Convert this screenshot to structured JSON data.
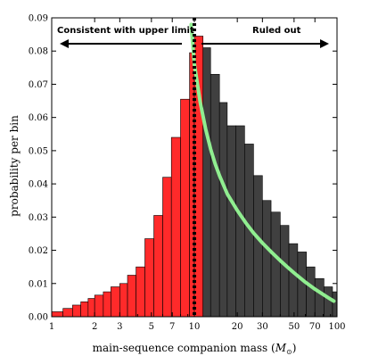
{
  "chart_data": {
    "type": "bar",
    "x_scale": "log",
    "xlim": [
      1,
      100
    ],
    "ylim": [
      0,
      0.09
    ],
    "xlabel": "main-sequence companion mass (",
    "xlabel_symbol": "M",
    "xlabel_subscript": "⊙",
    "xlabel_end": ")",
    "ylabel": "probability per bin",
    "x_ticks": [
      1,
      2,
      3,
      5,
      7,
      10,
      20,
      30,
      50,
      70,
      100
    ],
    "x_tick_labels": [
      "1",
      "2",
      "3",
      "5",
      "7",
      "10",
      "20",
      "30",
      "50",
      "70",
      "100"
    ],
    "y_ticks": [
      0,
      0.01,
      0.02,
      0.03,
      0.04,
      0.05,
      0.06,
      0.07,
      0.08,
      0.09
    ],
    "y_tick_labels": [
      "0.00",
      "0.01",
      "0.02",
      "0.03",
      "0.04",
      "0.05",
      "0.06",
      "0.07",
      "0.08",
      "0.09"
    ],
    "bin_edges": [
      1,
      1.2,
      1.4,
      1.6,
      1.8,
      2.0,
      2.3,
      2.6,
      3.0,
      3.4,
      3.9,
      4.5,
      5.2,
      6.0,
      6.9,
      8.0,
      9.25,
      10,
      11.5,
      13.0,
      15.0,
      17.0,
      19.5,
      22.5,
      26.0,
      30.0,
      34.5,
      40.0,
      46.0,
      53.0,
      61.0,
      70.0,
      81.0,
      93.0,
      100
    ],
    "series": [
      {
        "color": "#ff2a2a",
        "values": [
          0.0015,
          0.0025,
          0.0035,
          0.0045,
          0.0055,
          0.0065,
          0.0075,
          0.009,
          0.01,
          0.0125,
          0.015,
          0.0235,
          0.0305,
          0.042,
          0.054,
          0.0655,
          0.0795,
          0.0845
        ]
      },
      {
        "color": "#404040",
        "values": [
          0.081,
          0.073,
          0.0645,
          0.0575,
          0.0575,
          0.052,
          0.0425,
          0.035,
          0.0315,
          0.0275,
          0.022,
          0.0195,
          0.015,
          0.0115,
          0.009,
          0.0075,
          0.0105
        ]
      }
    ],
    "threshold_x": 10,
    "curve": {
      "color": "#90ee90",
      "x": [
        9.5,
        10,
        11,
        12,
        13,
        14,
        15,
        17,
        20,
        23,
        26,
        30,
        35,
        40,
        45,
        50,
        60,
        70,
        80,
        90,
        95
      ],
      "y": [
        0.088,
        0.076,
        0.0645,
        0.0565,
        0.0505,
        0.046,
        0.0425,
        0.037,
        0.032,
        0.0282,
        0.0252,
        0.0222,
        0.0193,
        0.0169,
        0.0149,
        0.0132,
        0.0104,
        0.0083,
        0.0067,
        0.0053,
        0.0047
      ]
    },
    "annotations": {
      "left": "Consistent with upper limit",
      "right": "Ruled out"
    }
  }
}
